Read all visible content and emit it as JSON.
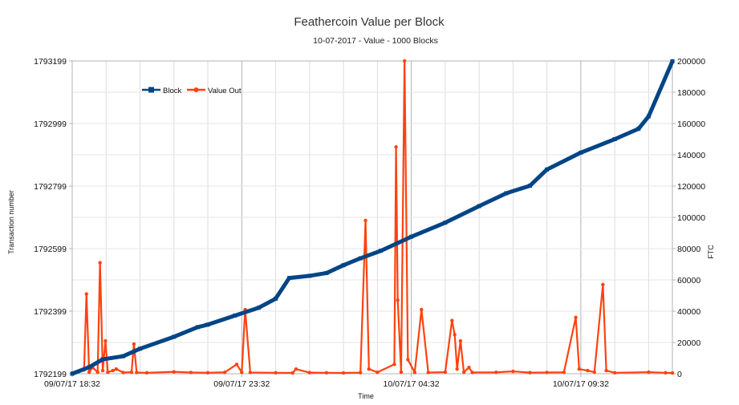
{
  "chart_data": {
    "type": "line",
    "title": "Feathercoin Value per Block",
    "subtitle": "10-07-2017 - Value - 1000 Blocks",
    "xlabel": "Time",
    "ylabel_left": "Transaction number",
    "ylabel_right": "FTC",
    "x_ticks": [
      "09/07/17 18:32",
      "09/07/17 23:32",
      "10/07/17 04:32",
      "10/07/17 09:32"
    ],
    "x_tick_hours": [
      0,
      5,
      10,
      15
    ],
    "x_range_hours": [
      0,
      17.7
    ],
    "ylim_left": [
      1792199,
      1793199
    ],
    "ylim_right": [
      0,
      200000
    ],
    "y_ticks_left": [
      "1792199",
      "1792399",
      "1792599",
      "1792799",
      "1792999",
      "1793199"
    ],
    "y_ticks_right": [
      "0",
      "20000",
      "40000",
      "60000",
      "80000",
      "100000",
      "120000",
      "140000",
      "160000",
      "180000",
      "200000"
    ],
    "grid": true,
    "legend_position": "top-left",
    "colors": {
      "block": "#004586",
      "value": "#ff420e",
      "grid": "#b3b3b3"
    },
    "series": [
      {
        "name": "Block",
        "axis": "left",
        "points": [
          [
            0.0,
            1792199
          ],
          [
            0.5,
            1792220
          ],
          [
            0.9,
            1792245
          ],
          [
            1.5,
            1792255
          ],
          [
            2.0,
            1792279
          ],
          [
            3.0,
            1792317
          ],
          [
            3.7,
            1792348
          ],
          [
            4.0,
            1792356
          ],
          [
            4.8,
            1792385
          ],
          [
            5.5,
            1792410
          ],
          [
            6.0,
            1792439
          ],
          [
            6.4,
            1792505
          ],
          [
            7.0,
            1792512
          ],
          [
            7.5,
            1792521
          ],
          [
            8.0,
            1792546
          ],
          [
            8.5,
            1792568
          ],
          [
            9.1,
            1792592
          ],
          [
            10.0,
            1792637
          ],
          [
            11.0,
            1792682
          ],
          [
            12.0,
            1792735
          ],
          [
            12.8,
            1792776
          ],
          [
            13.5,
            1792800
          ],
          [
            14.0,
            1792852
          ],
          [
            15.0,
            1792906
          ],
          [
            16.0,
            1792949
          ],
          [
            16.7,
            1792982
          ],
          [
            17.0,
            1793022
          ],
          [
            17.7,
            1793198
          ]
        ]
      },
      {
        "name": "Value Out",
        "axis": "right",
        "points": [
          [
            0.0,
            500
          ],
          [
            0.35,
            2500
          ],
          [
            0.42,
            51000
          ],
          [
            0.5,
            1000
          ],
          [
            0.6,
            4000
          ],
          [
            0.75,
            1000
          ],
          [
            0.82,
            71000
          ],
          [
            0.9,
            2000
          ],
          [
            0.98,
            21000
          ],
          [
            1.05,
            1000
          ],
          [
            1.2,
            2000
          ],
          [
            1.3,
            3000
          ],
          [
            1.5,
            800
          ],
          [
            1.75,
            1000
          ],
          [
            1.82,
            19000
          ],
          [
            1.9,
            800
          ],
          [
            2.2,
            600
          ],
          [
            3.0,
            1200
          ],
          [
            3.5,
            800
          ],
          [
            4.0,
            600
          ],
          [
            4.5,
            900
          ],
          [
            4.85,
            6000
          ],
          [
            5.0,
            900
          ],
          [
            5.1,
            41000
          ],
          [
            5.25,
            800
          ],
          [
            6.0,
            600
          ],
          [
            6.5,
            500
          ],
          [
            6.6,
            3000
          ],
          [
            7.0,
            700
          ],
          [
            7.5,
            600
          ],
          [
            8.0,
            500
          ],
          [
            8.5,
            700
          ],
          [
            8.65,
            98000
          ],
          [
            8.75,
            3000
          ],
          [
            9.0,
            900
          ],
          [
            9.5,
            6000
          ],
          [
            9.55,
            145000
          ],
          [
            9.6,
            47000
          ],
          [
            9.7,
            1000
          ],
          [
            9.8,
            200000
          ],
          [
            9.9,
            9000
          ],
          [
            10.1,
            800
          ],
          [
            10.3,
            41000
          ],
          [
            10.5,
            800
          ],
          [
            11.0,
            1000
          ],
          [
            11.2,
            34000
          ],
          [
            11.28,
            25000
          ],
          [
            11.35,
            3000
          ],
          [
            11.45,
            21000
          ],
          [
            11.55,
            1000
          ],
          [
            11.7,
            4000
          ],
          [
            11.8,
            800
          ],
          [
            12.5,
            900
          ],
          [
            13.0,
            1500
          ],
          [
            13.5,
            700
          ],
          [
            14.0,
            800
          ],
          [
            14.5,
            900
          ],
          [
            14.85,
            36000
          ],
          [
            14.95,
            3000
          ],
          [
            15.2,
            2000
          ],
          [
            15.4,
            1000
          ],
          [
            15.65,
            57000
          ],
          [
            15.75,
            2000
          ],
          [
            16.0,
            600
          ],
          [
            17.0,
            1000
          ],
          [
            17.5,
            600
          ],
          [
            17.7,
            500
          ]
        ]
      }
    ]
  }
}
